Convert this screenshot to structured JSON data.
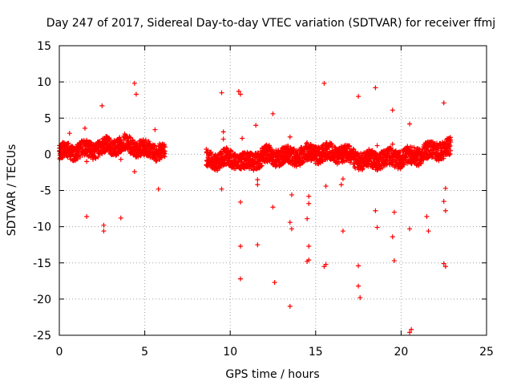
{
  "chart_data": {
    "type": "scatter",
    "title": "Day 247 of 2017, Sidereal Day-to-day VTEC variation (SDTVAR) for receiver ffmj",
    "xlabel": "GPS time / hours",
    "ylabel": "SDTVAR / TECUs",
    "xlim": [
      0,
      25
    ],
    "ylim": [
      -25,
      15
    ],
    "xticks": [
      0,
      5,
      10,
      15,
      20,
      25
    ],
    "yticks": [
      -25,
      -20,
      -15,
      -10,
      -5,
      0,
      5,
      10,
      15
    ],
    "xtick_labels": [
      "0",
      "5",
      "10",
      "15",
      "20",
      "25"
    ],
    "ytick_labels": [
      "-25",
      "-20",
      "-15",
      "-10",
      "-5",
      "0",
      "5",
      "10",
      "15"
    ],
    "grid": true,
    "marker": "+",
    "color": "#ff0000",
    "bands": [
      {
        "x0": 0.0,
        "x1": 6.2,
        "center": [
          [
            0.0,
            0.3
          ],
          [
            1.0,
            0.5
          ],
          [
            2.0,
            0.7
          ],
          [
            3.0,
            1.2
          ],
          [
            4.0,
            1.4
          ],
          [
            5.0,
            0.6
          ],
          [
            6.2,
            0.4
          ]
        ],
        "halfwidth": 1.1
      },
      {
        "x0": 8.6,
        "x1": 22.9,
        "center": [
          [
            8.6,
            -0.8
          ],
          [
            10.0,
            -0.6
          ],
          [
            11.0,
            -1.2
          ],
          [
            12.0,
            -0.2
          ],
          [
            13.5,
            -0.3
          ],
          [
            15.0,
            0.2
          ],
          [
            16.5,
            0.1
          ],
          [
            17.8,
            -0.9
          ],
          [
            19.0,
            -0.6
          ],
          [
            20.5,
            -0.4
          ],
          [
            22.0,
            0.6
          ],
          [
            22.9,
            0.8
          ]
        ],
        "halfwidth": 1.2
      }
    ],
    "outliers": [
      [
        0.6,
        2.9
      ],
      [
        1.5,
        3.6
      ],
      [
        1.6,
        -1.0
      ],
      [
        1.6,
        -8.6
      ],
      [
        2.5,
        6.7
      ],
      [
        2.6,
        -9.8
      ],
      [
        2.6,
        -10.6
      ],
      [
        3.6,
        -8.8
      ],
      [
        3.6,
        -0.7
      ],
      [
        4.4,
        9.8
      ],
      [
        4.5,
        8.3
      ],
      [
        4.4,
        -2.4
      ],
      [
        5.6,
        3.4
      ],
      [
        5.8,
        -4.8
      ],
      [
        9.5,
        8.5
      ],
      [
        9.6,
        3.1
      ],
      [
        9.5,
        -4.8
      ],
      [
        9.6,
        2.1
      ],
      [
        10.5,
        8.7
      ],
      [
        10.6,
        8.3
      ],
      [
        10.6,
        -6.6
      ],
      [
        10.6,
        -12.7
      ],
      [
        10.6,
        -17.2
      ],
      [
        10.7,
        2.2
      ],
      [
        11.5,
        4.0
      ],
      [
        11.6,
        -3.5
      ],
      [
        11.6,
        -4.2
      ],
      [
        11.6,
        -12.5
      ],
      [
        12.5,
        5.6
      ],
      [
        12.5,
        -7.3
      ],
      [
        12.6,
        -17.7
      ],
      [
        13.5,
        2.4
      ],
      [
        13.6,
        -5.6
      ],
      [
        13.5,
        -9.4
      ],
      [
        13.6,
        -10.3
      ],
      [
        13.5,
        -21.0
      ],
      [
        14.5,
        1.6
      ],
      [
        14.6,
        -5.8
      ],
      [
        14.6,
        -6.8
      ],
      [
        14.5,
        -8.9
      ],
      [
        14.6,
        -12.7
      ],
      [
        14.6,
        -14.6
      ],
      [
        14.5,
        -14.8
      ],
      [
        15.5,
        9.8
      ],
      [
        15.6,
        -4.4
      ],
      [
        15.6,
        -15.2
      ],
      [
        15.5,
        -15.5
      ],
      [
        16.5,
        1.1
      ],
      [
        16.6,
        -3.4
      ],
      [
        16.5,
        -4.2
      ],
      [
        16.6,
        -10.6
      ],
      [
        17.5,
        8.0
      ],
      [
        17.5,
        -15.4
      ],
      [
        17.5,
        -18.2
      ],
      [
        17.6,
        -19.8
      ],
      [
        18.5,
        9.2
      ],
      [
        18.6,
        1.2
      ],
      [
        18.5,
        -7.8
      ],
      [
        18.6,
        -10.1
      ],
      [
        19.5,
        6.1
      ],
      [
        19.5,
        1.4
      ],
      [
        19.6,
        -8.0
      ],
      [
        19.5,
        -11.4
      ],
      [
        19.6,
        -14.7
      ],
      [
        20.5,
        4.2
      ],
      [
        20.5,
        -10.3
      ],
      [
        20.6,
        -24.2
      ],
      [
        20.5,
        -24.6
      ],
      [
        21.5,
        -8.6
      ],
      [
        21.6,
        -10.6
      ],
      [
        22.5,
        7.1
      ],
      [
        22.6,
        -4.7
      ],
      [
        22.5,
        -6.5
      ],
      [
        22.6,
        -7.8
      ],
      [
        22.5,
        -15.1
      ],
      [
        22.6,
        -15.5
      ]
    ]
  }
}
